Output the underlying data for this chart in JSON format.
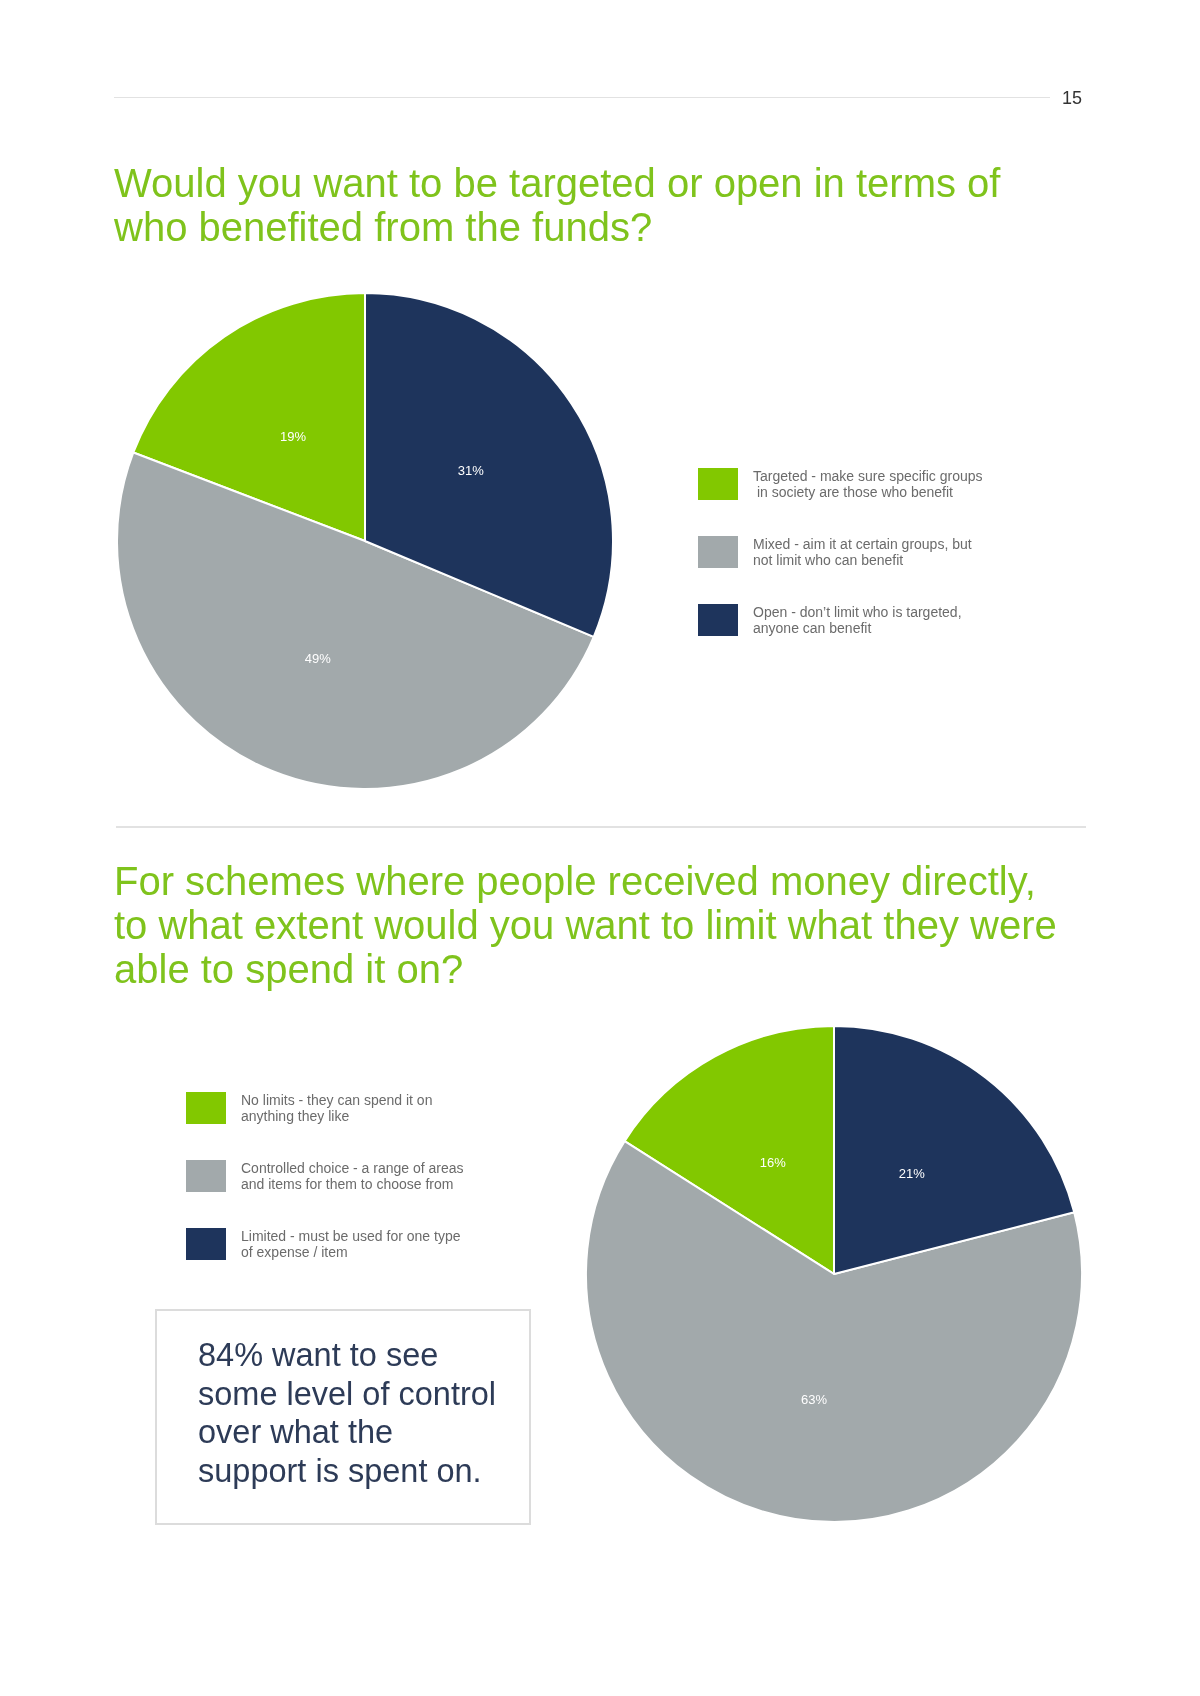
{
  "chart_data": [
    {
      "type": "pie",
      "title": "Would you want to be targeted or open in terms of who benefited from the funds?",
      "categories": [
        "Targeted - make sure specific groups in society are those who benefit",
        "Mixed - aim it at certain groups, but not limit who can benefit",
        "Open - don’t limit who is targeted, anyone can benefit"
      ],
      "values": [
        19,
        49,
        31
      ],
      "colors": [
        "#82c800",
        "#a2a9ab",
        "#1e345c"
      ],
      "value_labels": [
        "19%",
        "49%",
        "31%"
      ],
      "legend": "right",
      "annotations": [
        "15"
      ]
    },
    {
      "type": "pie",
      "title": "For schemes where people received money directly, to what extent would you want to limit what they were able to spend it on?",
      "categories": [
        "No limits - they can spend it on anything they like",
        "Controlled choice - a range of areas and items for them to choose from",
        "Limited - must be used for one type of expense / item"
      ],
      "values": [
        16,
        63,
        21
      ],
      "colors": [
        "#82c800",
        "#a2a9ab",
        "#1e345c"
      ],
      "value_labels": [
        "16%",
        "63%",
        "21%"
      ],
      "legend": "left",
      "annotations": [
        "84% want to see some level of control over what the support is spent on."
      ]
    }
  ]
}
